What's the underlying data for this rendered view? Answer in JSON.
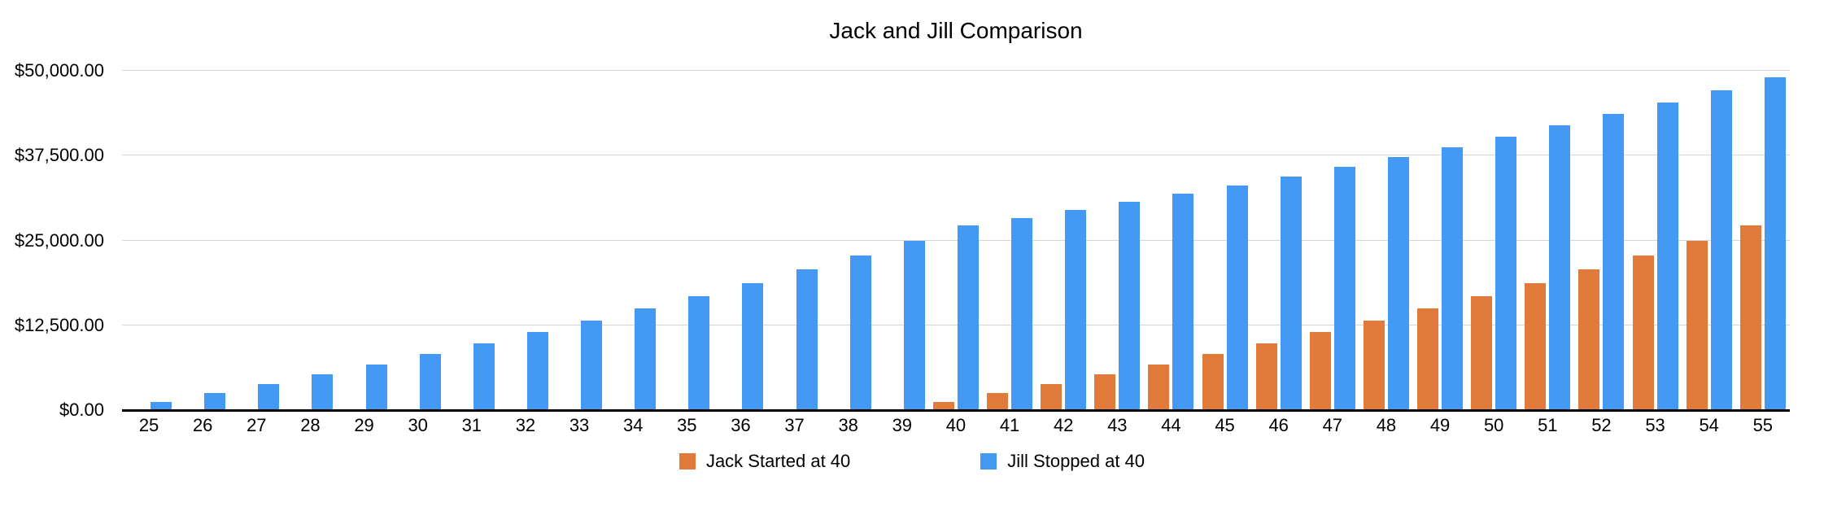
{
  "chart_data": {
    "type": "bar",
    "title": "Jack and Jill Comparison",
    "xlabel": "",
    "ylabel": "",
    "categories": [
      "25",
      "26",
      "27",
      "28",
      "29",
      "30",
      "31",
      "32",
      "33",
      "34",
      "35",
      "36",
      "37",
      "38",
      "39",
      "40",
      "41",
      "42",
      "43",
      "44",
      "45",
      "46",
      "47",
      "48",
      "49",
      "50",
      "51",
      "52",
      "53",
      "54",
      "55"
    ],
    "series": [
      {
        "name": "Jack Started at 40",
        "color": "#e07b3c",
        "values": [
          0,
          0,
          0,
          0,
          0,
          0,
          0,
          0,
          0,
          0,
          0,
          0,
          0,
          0,
          0,
          1248,
          2546,
          3896,
          5300,
          6760,
          8278,
          9857,
          11499,
          13207,
          14984,
          16831,
          18752,
          20750,
          22828,
          24989,
          27237
        ]
      },
      {
        "name": "Jill Stopped at 40",
        "color": "#4499f4",
        "values": [
          1248,
          2546,
          3896,
          5300,
          6760,
          8278,
          9857,
          11499,
          13207,
          14984,
          16831,
          18752,
          20750,
          22828,
          24989,
          27237,
          28326,
          29460,
          30638,
          31863,
          33138,
          34464,
          35842,
          37276,
          38767,
          40317,
          41930,
          43607,
          45352,
          47166,
          49052
        ]
      }
    ],
    "ylim": [
      0,
      50000
    ],
    "y_ticks": [
      {
        "value": 0,
        "label": "$0.00"
      },
      {
        "value": 12500,
        "label": "$12,500.00"
      },
      {
        "value": 25000,
        "label": "$25,000.00"
      },
      {
        "value": 37500,
        "label": "$37,500.00"
      },
      {
        "value": 50000,
        "label": "$50,000.00"
      }
    ],
    "grid": "horizontal",
    "gridline_color": "#d6d6d6",
    "axis_color": "#000000",
    "background_color": "#ffffff",
    "legend_position": "bottom"
  }
}
